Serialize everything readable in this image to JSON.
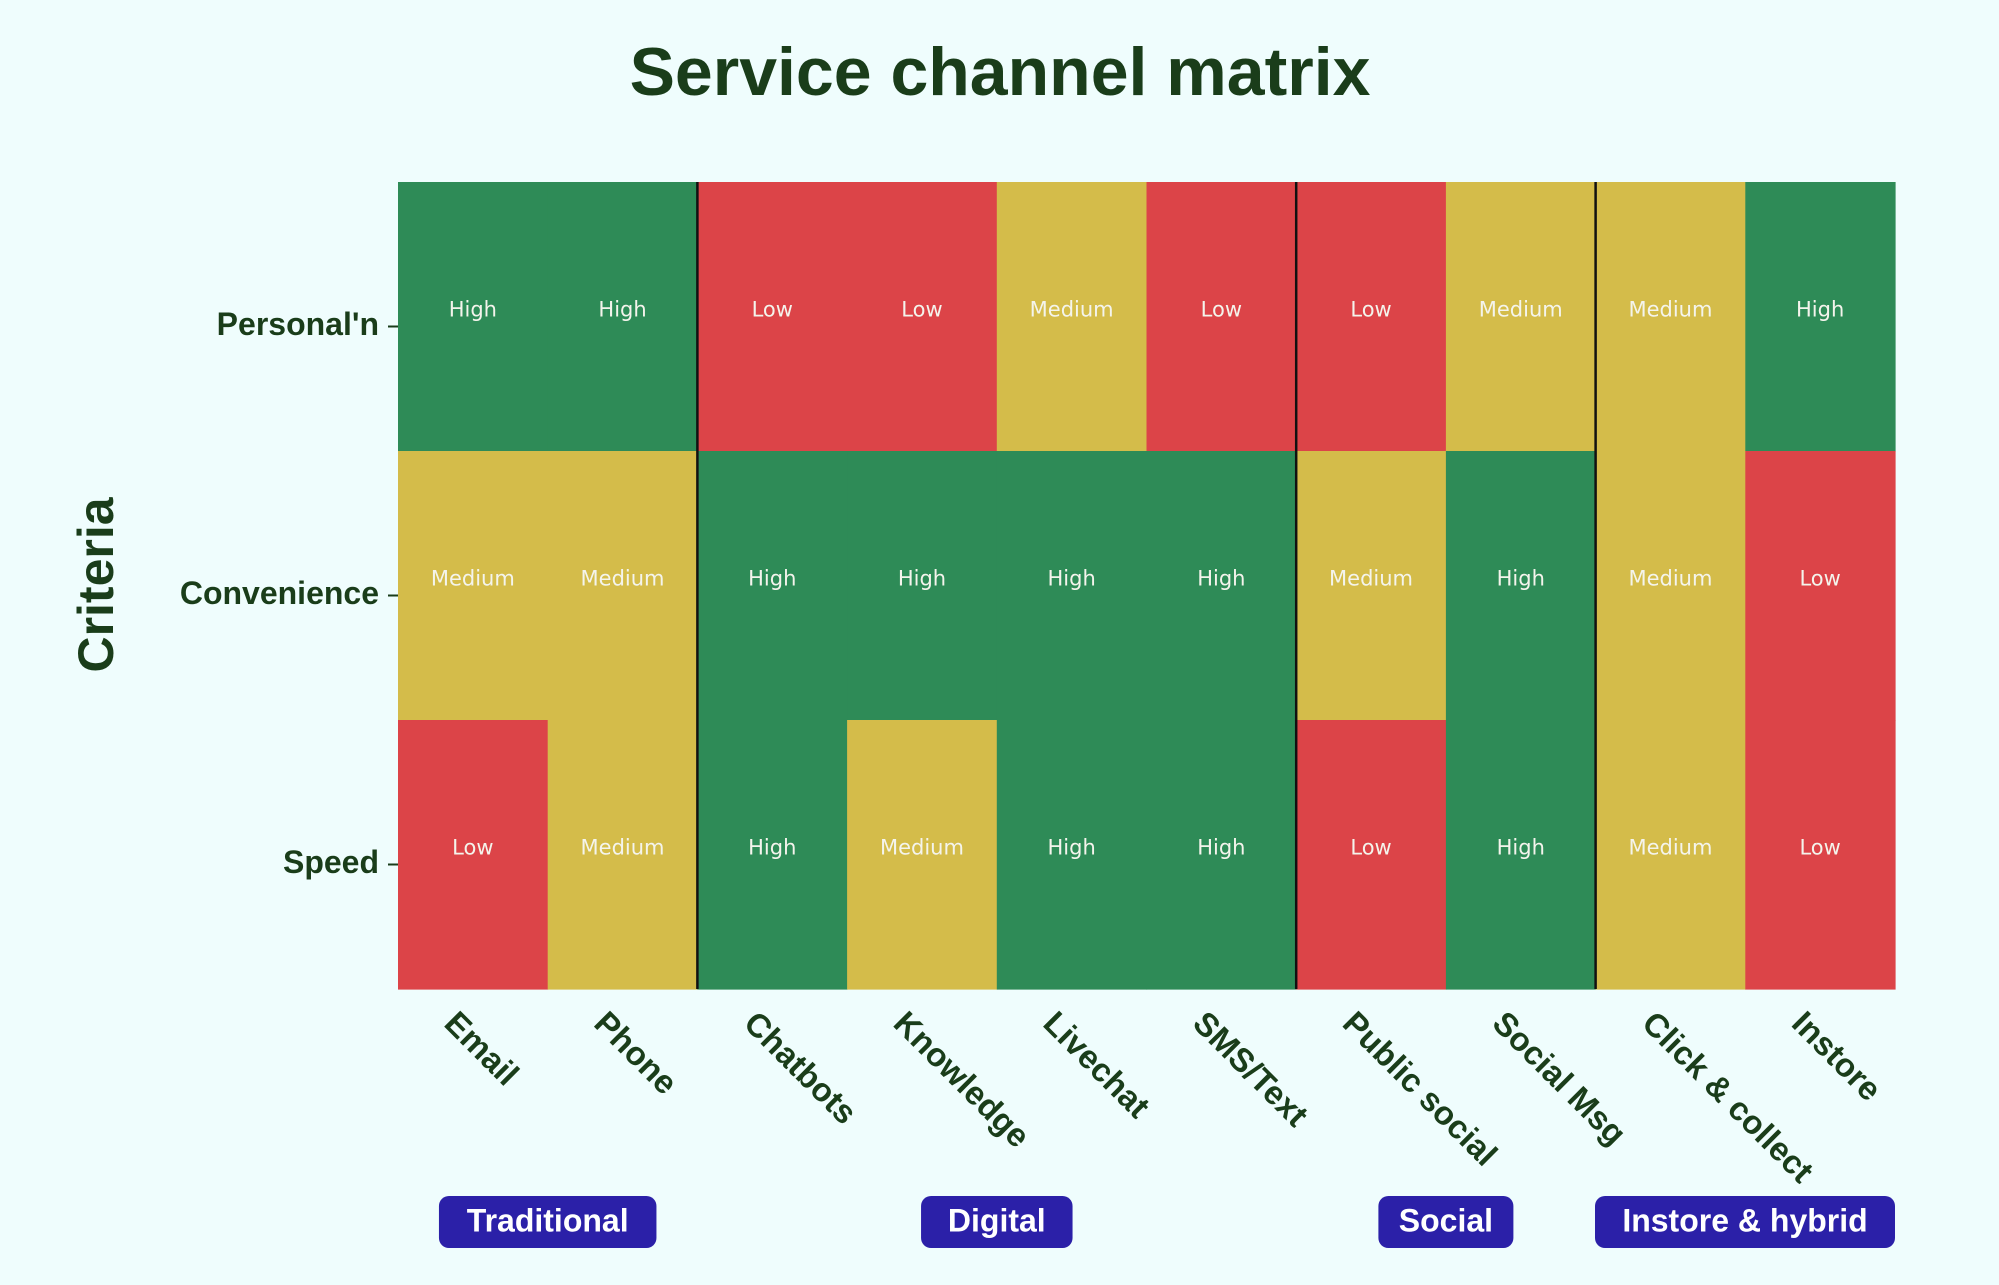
{
  "chart_data": {
    "type": "heatmap",
    "title": "Service channel matrix",
    "ylabel": "Criteria",
    "rows": [
      "Personal'n",
      "Convenience",
      "Speed"
    ],
    "columns": [
      "Email",
      "Phone",
      "Chatbots",
      "Knowledge",
      "Livechat",
      "SMS/Text",
      "Public social",
      "Social Msg",
      "Click & collect",
      "Instore"
    ],
    "values": [
      [
        "High",
        "High",
        "Low",
        "Low",
        "Medium",
        "Low",
        "Low",
        "Medium",
        "Medium",
        "High"
      ],
      [
        "Medium",
        "Medium",
        "High",
        "High",
        "High",
        "High",
        "Medium",
        "High",
        "Medium",
        "Low"
      ],
      [
        "Low",
        "Medium",
        "High",
        "Medium",
        "High",
        "High",
        "Low",
        "High",
        "Medium",
        "Low"
      ]
    ],
    "groups": [
      {
        "label": "Traditional",
        "columns": [
          "Email",
          "Phone"
        ]
      },
      {
        "label": "Digital",
        "columns": [
          "Chatbots",
          "Knowledge",
          "Livechat",
          "SMS/Text"
        ]
      },
      {
        "label": "Social",
        "columns": [
          "Public social",
          "Social Msg"
        ]
      },
      {
        "label": "Instore & hybrid",
        "columns": [
          "Click & collect",
          "Instore"
        ]
      }
    ],
    "colors": {
      "High": "#2e8b57",
      "Medium": "#d4bc4a",
      "Low": "#dc4448",
      "group_badge": "#2b20a8",
      "background": "#effdfd",
      "text": "#1a3d1a"
    }
  }
}
